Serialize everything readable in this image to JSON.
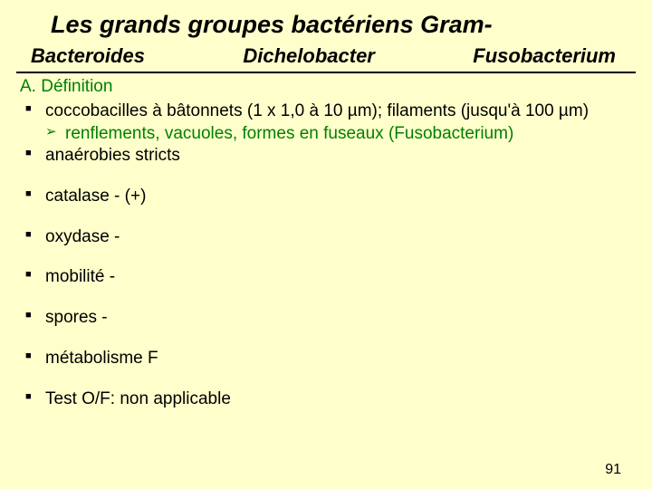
{
  "title": "Les grands groupes bactériens Gram-",
  "genera": [
    "Bacteroides",
    "Dichelobacter",
    "Fusobacterium"
  ],
  "sectionLabel": "A. Définition",
  "bullets": {
    "b1": "coccobacilles à bâtonnets (1 x 1,0 à 10 µm); filaments (jusqu'à 100 µm)",
    "b1sub": "renflements, vacuoles, formes en fuseaux (Fusobacterium)",
    "b2": "anaérobies stricts",
    "b3": "catalase - (+)",
    "b4": "oxydase -",
    "b5": "mobilité -",
    "b6": "spores -",
    "b7": "métabolisme F",
    "b8": "Test O/F: non applicable"
  },
  "pageNumber": "91",
  "colors": {
    "background": "#ffffcc",
    "text": "#000000",
    "accent": "#008000"
  }
}
